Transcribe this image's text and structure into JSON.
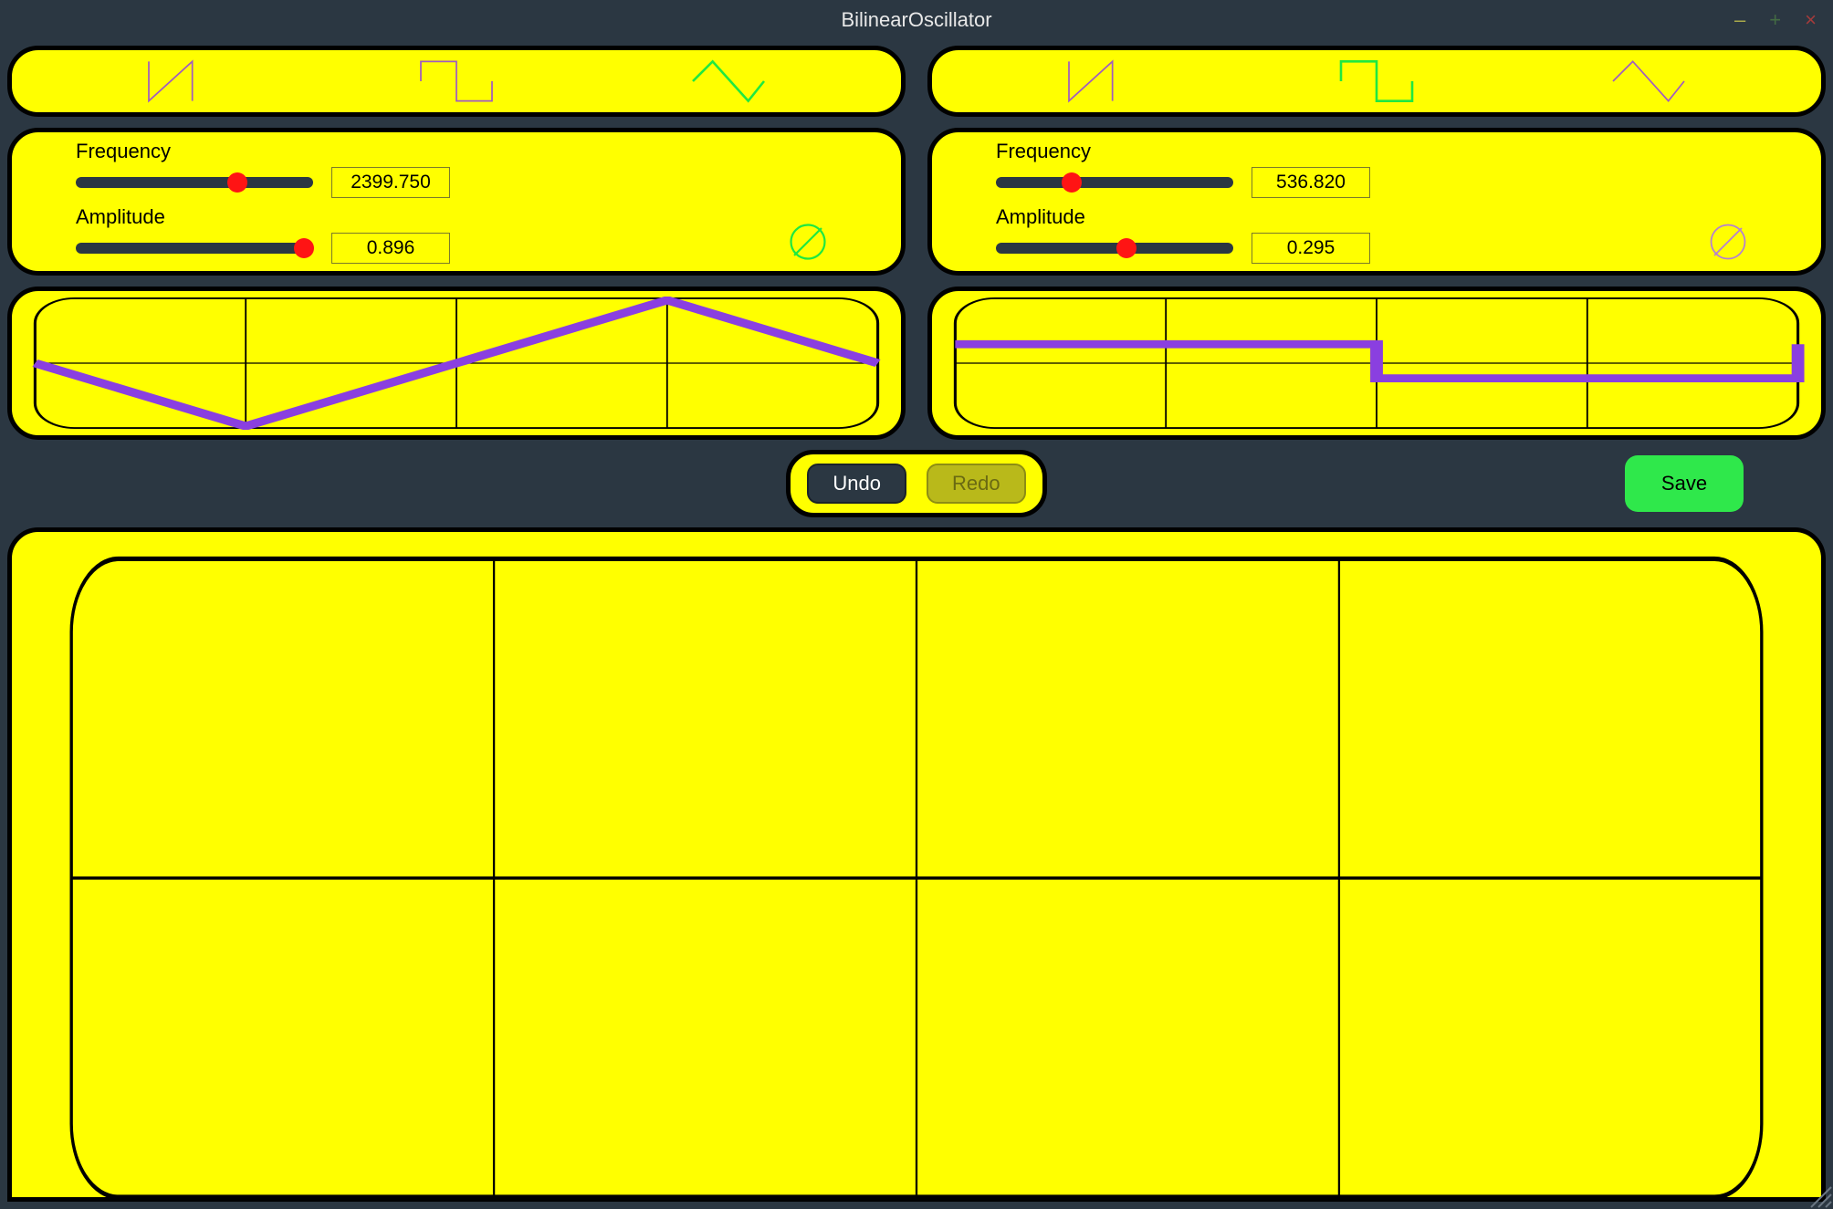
{
  "window": {
    "title": "BilinearOscillator",
    "controls": {
      "minimize": "–",
      "maximize": "+",
      "close": "×",
      "minimize_color": "#a9a94b",
      "maximize_color": "#436b43",
      "close_color": "#a43b3b"
    },
    "background": "#2b3742"
  },
  "colors": {
    "panel_bg": "#ffff00",
    "panel_border": "#000000",
    "slider_track": "#2b3742",
    "slider_thumb": "#ff1414",
    "wave_unselected": "#a05bc2",
    "wave_selected": "#1fe841",
    "waveform_stroke": "#8a3fe0",
    "grid_stroke": "#000000",
    "phase_green": "#1fe841",
    "phase_purple": "#b47fd4",
    "save_bg": "#2fe84b",
    "redo_bg": "#b9b91a"
  },
  "oscillators": [
    {
      "selected_wave": 2,
      "waves": [
        "sawtooth",
        "square",
        "triangle"
      ],
      "frequency": {
        "label": "Frequency",
        "value": "2399.750",
        "slider_pos": 0.68
      },
      "amplitude": {
        "label": "Amplitude",
        "value": "0.896",
        "slider_pos": 0.96
      },
      "phase_inverted": false,
      "phase_color": "green",
      "display": {
        "type": "triangle",
        "points": [
          [
            0,
            0.5
          ],
          [
            0.25,
            1
          ],
          [
            0.75,
            0
          ],
          [
            1,
            0.5
          ]
        ]
      }
    },
    {
      "selected_wave": 1,
      "waves": [
        "sawtooth",
        "square",
        "triangle"
      ],
      "frequency": {
        "label": "Frequency",
        "value": "536.820",
        "slider_pos": 0.32
      },
      "amplitude": {
        "label": "Amplitude",
        "value": "0.295",
        "slider_pos": 0.55
      },
      "phase_inverted": false,
      "phase_color": "purple",
      "display": {
        "type": "square",
        "points": [
          [
            0,
            0.35
          ],
          [
            0.5,
            0.35
          ],
          [
            0.5,
            0.62
          ],
          [
            1,
            0.62
          ],
          [
            1,
            0.35
          ]
        ]
      }
    }
  ],
  "actions": {
    "undo": "Undo",
    "redo": "Redo",
    "save": "Save"
  },
  "output": {
    "grid": {
      "cols": 4,
      "rows": 2
    },
    "points": []
  }
}
